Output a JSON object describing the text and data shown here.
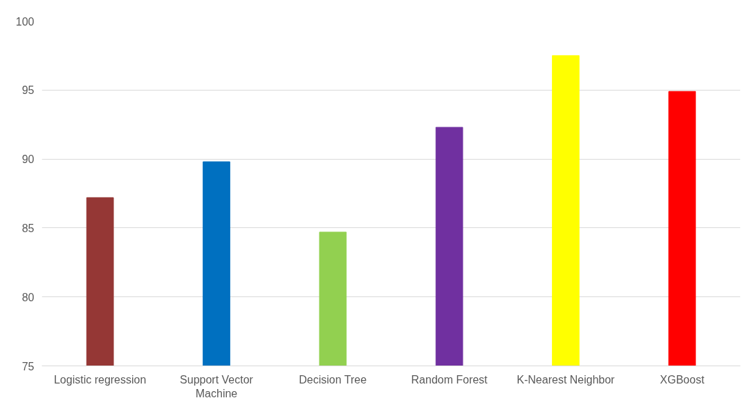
{
  "chart_data": {
    "type": "bar",
    "categories": [
      "Logistic regression",
      "Support Vector Machine",
      "Decision Tree",
      "Random Forest",
      "K-Nearest Neighbor",
      "XGBoost"
    ],
    "values": [
      87.2,
      89.8,
      84.7,
      92.3,
      97.5,
      94.9
    ],
    "colors": [
      "#953735",
      "#0070c0",
      "#92d050",
      "#7030a0",
      "#ffff00",
      "#ff0000"
    ],
    "ylim": [
      75,
      100
    ],
    "yticks": [
      75,
      80,
      85,
      90,
      95,
      100
    ],
    "grid": "y"
  }
}
